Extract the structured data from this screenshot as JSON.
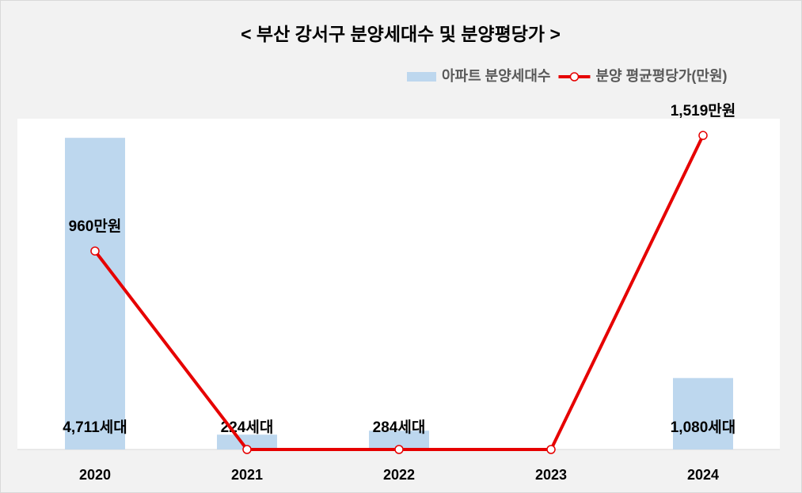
{
  "chart_data": {
    "type": "combo",
    "title": "< 부산 강서구 분양세대수 및 분양평당가 >",
    "categories": [
      "2020",
      "2021",
      "2022",
      "2023",
      "2024"
    ],
    "series": [
      {
        "name": "아파트 분양세대수",
        "type": "bar",
        "color": "#bdd7ee",
        "values": [
          4711,
          224,
          284,
          null,
          1080
        ],
        "value_labels": [
          "4,711세대",
          "224세대",
          "284세대",
          null,
          "1,080세대"
        ]
      },
      {
        "name": "분양 평균평당가(만원)",
        "type": "line",
        "axis": "y2",
        "color": "#e60000",
        "values": [
          960,
          0,
          0,
          0,
          1519
        ],
        "value_labels": [
          "960만원",
          null,
          null,
          null,
          "1,519만원"
        ]
      }
    ],
    "ylim": [
      0,
      5000
    ],
    "y2lim": [
      0,
      1600
    ],
    "legend": "top-right"
  }
}
